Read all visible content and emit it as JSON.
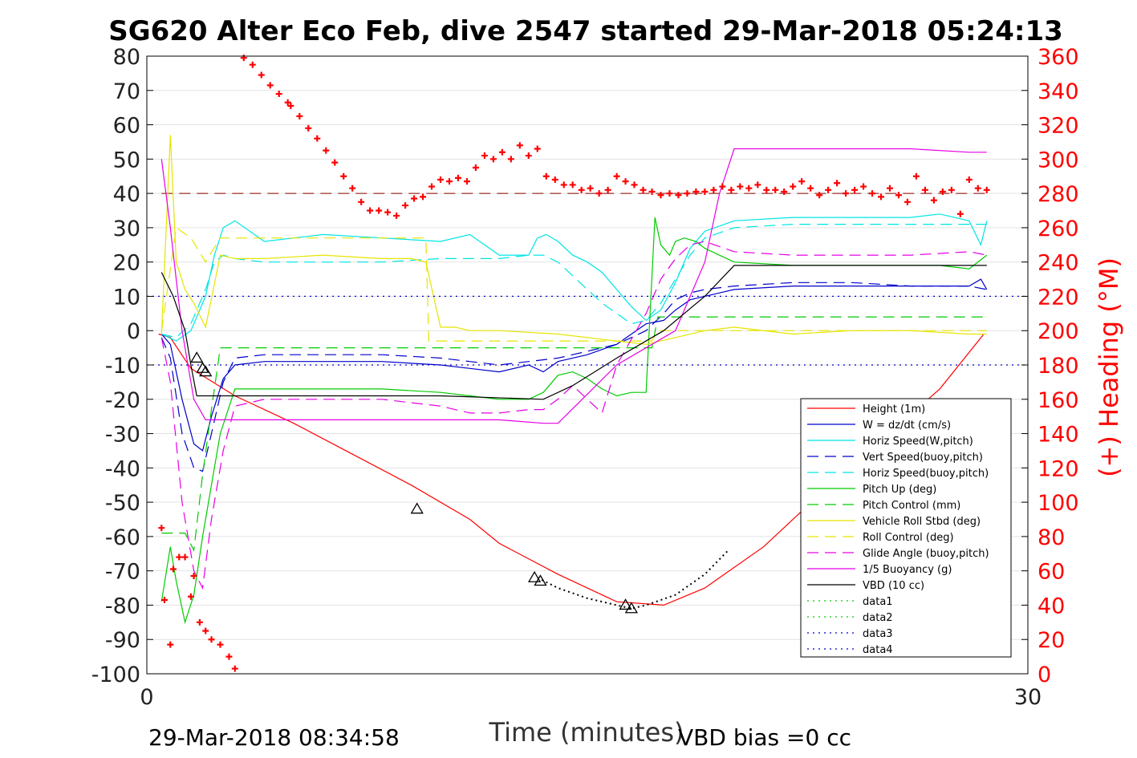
{
  "chart_data": {
    "type": "line",
    "title": "SG620 Alter Eco Feb, dive 2547 started 29-Mar-2018 05:24:13",
    "xlabel": "Time (minutes)",
    "ylabel_right": "(+) Heading (°M)",
    "footer_left": "29-Mar-2018 08:34:58",
    "footer_right": "VBD bias =0 cc",
    "xlim": [
      0,
      30
    ],
    "ylim": [
      -100,
      80
    ],
    "ylim_right": [
      0,
      360
    ],
    "xticks": [
      "0",
      "30"
    ],
    "yticks": [
      "80",
      "70",
      "60",
      "50",
      "40",
      "30",
      "20",
      "10",
      "0",
      "-10",
      "-20",
      "-30",
      "-40",
      "-50",
      "-60",
      "-70",
      "-80",
      "-90",
      "-100"
    ],
    "yticks_right": [
      "360",
      "340",
      "320",
      "300",
      "280",
      "260",
      "240",
      "220",
      "200",
      "180",
      "160",
      "140",
      "120",
      "100",
      "80",
      "60",
      "40",
      "20",
      "0"
    ],
    "grid": true,
    "legend_position": "lower-right",
    "colors": {
      "axis_right": "#ff0000",
      "red": "#ff0000",
      "blue": "#0000cc",
      "cyan": "#00e5e5",
      "green": "#00cc00",
      "yellow": "#e5e500",
      "magenta": "#e500e5",
      "black": "#000000",
      "darkred": "#8b0000"
    },
    "series": [
      {
        "name": "Height (1m)",
        "style": "solid",
        "color": "#ff0000",
        "x": [
          0.4,
          0.8,
          1.5,
          3,
          5,
          7,
          9,
          11,
          12,
          14,
          16,
          17.6,
          19,
          21,
          23,
          25,
          27,
          28.5
        ],
        "y": [
          -1,
          -2,
          -11,
          -19,
          -27,
          -36,
          -45,
          -55,
          -62,
          -71,
          -79,
          -80,
          -75,
          -63,
          -47,
          -32,
          -17,
          -1
        ]
      },
      {
        "name": "W = dz/dt (cm/s)",
        "style": "solid",
        "color": "#0000cc",
        "x": [
          0.5,
          0.8,
          1.2,
          1.6,
          1.9,
          2.2,
          2.6,
          3,
          4,
          6,
          8,
          10,
          11,
          12,
          13,
          13.5,
          14,
          15,
          16,
          16.5,
          17,
          17.6,
          18,
          18.5,
          19,
          20,
          22,
          24,
          26,
          28,
          28.4,
          28.6
        ],
        "y": [
          -1,
          -4,
          -20,
          -33,
          -35,
          -25,
          -14,
          -10,
          -9,
          -9,
          -9,
          -10,
          -11,
          -12,
          -10,
          -12,
          -9,
          -7,
          -4,
          -1,
          2,
          3,
          6,
          9,
          10,
          12,
          13,
          13,
          13,
          13,
          15,
          12
        ]
      },
      {
        "name": "Horiz Speed(W,pitch)",
        "style": "solid",
        "color": "#00e5e5",
        "x": [
          0.5,
          1,
          1.5,
          2,
          2.3,
          2.6,
          3,
          4,
          6,
          8,
          10,
          11,
          12,
          13,
          13.3,
          13.6,
          14,
          14.5,
          15,
          15.5,
          16,
          16.5,
          17,
          17.5,
          18,
          18.5,
          19,
          20,
          22,
          24,
          26,
          27,
          28,
          28.4,
          28.6
        ],
        "y": [
          -1,
          -3,
          0,
          10,
          22,
          30,
          32,
          26,
          28,
          27,
          26,
          28,
          22,
          22,
          27,
          28,
          26,
          22,
          20,
          17,
          12,
          7,
          3,
          6,
          14,
          24,
          29,
          32,
          33,
          33,
          33,
          34,
          32,
          25,
          32
        ]
      },
      {
        "name": "Vert Speed(buoy,pitch)",
        "style": "dashed",
        "color": "#0000cc",
        "x": [
          0.5,
          0.8,
          1.2,
          1.6,
          1.9,
          2.2,
          2.6,
          3,
          4,
          6,
          8,
          10,
          11,
          12,
          13,
          14,
          15,
          16,
          16.5,
          17,
          17.6,
          18,
          18.5,
          19,
          20,
          22,
          24,
          26,
          28,
          28.6
        ],
        "y": [
          -2,
          -8,
          -30,
          -40,
          -41,
          -30,
          -15,
          -8,
          -7,
          -7,
          -7,
          -8,
          -9,
          -10,
          -9,
          -8,
          -6,
          -4,
          -2,
          0,
          5,
          9,
          11,
          12,
          13,
          14,
          14,
          13,
          13,
          12
        ]
      },
      {
        "name": "Horiz Speed(buoy,pitch)",
        "style": "dashed",
        "color": "#00e5e5",
        "x": [
          0.5,
          1,
          1.5,
          2,
          2.3,
          2.6,
          3,
          4,
          6,
          8,
          10,
          12,
          13,
          13.5,
          14,
          14.5,
          15,
          15.5,
          16,
          16.5,
          17,
          17.5,
          18,
          18.5,
          19,
          20,
          22,
          24,
          26,
          28,
          28.6
        ],
        "y": [
          -1,
          -2,
          2,
          12,
          20,
          22,
          21,
          20,
          20,
          20,
          21,
          21,
          22,
          22,
          20,
          16,
          12,
          8,
          5,
          2,
          3,
          8,
          15,
          22,
          27,
          30,
          31,
          31,
          31,
          31,
          31
        ]
      },
      {
        "name": "Pitch Up (deg)",
        "style": "solid",
        "color": "#00cc00",
        "x": [
          0.5,
          0.8,
          1,
          1.3,
          1.6,
          1.9,
          2.2,
          2.5,
          3,
          4,
          6,
          8,
          10,
          11,
          12,
          13,
          13.5,
          14,
          14.5,
          15,
          15.5,
          16,
          16.5,
          17,
          17.3,
          17.5,
          17.8,
          18,
          18.3,
          18.7,
          19,
          20,
          22,
          24,
          26,
          27,
          28,
          28.6
        ],
        "y": [
          -79,
          -63,
          -73,
          -85,
          -77,
          -60,
          -45,
          -30,
          -17,
          -17,
          -17,
          -17,
          -18,
          -19,
          -20,
          -20,
          -18,
          -13,
          -12,
          -14,
          -17,
          -19,
          -18,
          -18,
          33,
          25,
          22,
          26,
          27,
          26,
          24,
          20,
          19,
          19,
          19,
          19,
          18,
          22
        ]
      },
      {
        "name": "Pitch Control (mm)",
        "style": "dashed",
        "color": "#00cc00",
        "x": [
          0.5,
          1.3,
          1.6,
          1.9,
          2.2,
          2.5,
          13.5,
          17.2,
          17.4,
          28.6
        ],
        "y": [
          -59,
          -59,
          -64,
          -42,
          -23,
          -5,
          -5,
          -5,
          4,
          4
        ]
      },
      {
        "name": "Vehicle Roll Stbd (deg)",
        "style": "solid",
        "color": "#e5e500",
        "x": [
          0.5,
          0.8,
          1,
          1.3,
          1.6,
          2,
          2.5,
          3,
          4,
          6,
          8,
          9,
          9.5,
          10,
          10.5,
          11,
          12,
          14,
          16,
          17,
          18,
          19,
          20,
          22,
          24,
          26,
          28,
          28.6
        ],
        "y": [
          -1,
          57,
          20,
          12,
          8,
          1,
          22,
          21,
          21,
          22,
          21,
          21,
          20,
          1,
          1,
          0,
          0,
          -1,
          -3,
          -4,
          -2,
          0,
          1,
          -1,
          0,
          0,
          -1,
          -1
        ]
      },
      {
        "name": "Roll Control (deg)",
        "style": "dashed",
        "color": "#e5e500",
        "x": [
          0.5,
          1,
          1.5,
          2,
          2.5,
          9.5,
          9.6,
          17.2,
          17.4,
          28.6
        ],
        "y": [
          0,
          30,
          27,
          20,
          27,
          27,
          -3,
          -3,
          0,
          0
        ]
      },
      {
        "name": "Glide Angle (buoy,pitch)",
        "style": "dashed",
        "color": "#e500e5",
        "x": [
          0.5,
          0.8,
          1.2,
          1.6,
          1.9,
          2.2,
          2.6,
          3,
          4,
          6,
          8,
          10,
          11,
          12,
          13,
          13.5,
          14,
          14.5,
          15,
          15.5,
          16,
          17,
          17.5,
          18,
          18.5,
          19,
          20,
          22,
          24,
          26,
          28,
          28.6
        ],
        "y": [
          -2,
          -15,
          -50,
          -70,
          -75,
          -55,
          -35,
          -22,
          -20,
          -20,
          -20,
          -22,
          -24,
          -24,
          -23,
          -23,
          -20,
          -16,
          -20,
          -24,
          -10,
          5,
          15,
          21,
          25,
          26,
          23,
          22,
          22,
          22,
          23,
          22
        ]
      },
      {
        "name": "1/5 Buoyancy (g)",
        "style": "solid",
        "color": "#e500e5",
        "x": [
          0.5,
          0.8,
          1.2,
          1.6,
          2,
          2.5,
          3,
          4,
          8,
          12,
          13.5,
          14,
          16,
          18,
          19,
          19.5,
          20,
          22,
          24,
          26,
          28,
          28.6
        ],
        "y": [
          50,
          30,
          0,
          -20,
          -26,
          -26,
          -26,
          -26,
          -26,
          -26,
          -27,
          -27,
          -10,
          0,
          20,
          40,
          53,
          53,
          53,
          53,
          52,
          52
        ]
      },
      {
        "name": "VBD (10 cc)",
        "style": "solid",
        "color": "#000000",
        "x": [
          0.5,
          0.9,
          1.3,
          1.5,
          1.7,
          3,
          6,
          10,
          13.5,
          14.5,
          16,
          17.6,
          19,
          20,
          22,
          24,
          26,
          28,
          28.6
        ],
        "y": [
          17,
          10,
          0,
          -10,
          -19,
          -19,
          -19,
          -19,
          -20,
          -16,
          -8,
          0,
          10,
          19,
          19,
          19,
          19,
          19,
          19
        ]
      },
      {
        "name": "data1",
        "style": "dotted",
        "color": "#00cc00",
        "x": [],
        "y": []
      },
      {
        "name": "data2",
        "style": "dotted",
        "color": "#00cc00",
        "x": [],
        "y": []
      },
      {
        "name": "data3",
        "style": "dotted",
        "color": "#0000cc",
        "x": [
          0,
          30
        ],
        "y": [
          10,
          10
        ]
      },
      {
        "name": "data4",
        "style": "dotted",
        "color": "#0000cc",
        "x": [
          0,
          30
        ],
        "y": [
          -10,
          -10
        ]
      }
    ],
    "reference_lines": [
      {
        "axis": "right",
        "value": 280,
        "style": "dashed",
        "color": "#8b0000"
      }
    ],
    "heading_points_right_axis": {
      "x": [
        0.5,
        0.6,
        0.8,
        0.9,
        1.1,
        1.3,
        1.5,
        1.6,
        1.8,
        2.0,
        2.2,
        2.5,
        2.8,
        3,
        3.3,
        3.6,
        3.9,
        4.2,
        4.5,
        4.8,
        4.9,
        5.2,
        5.5,
        5.8,
        6.1,
        6.4,
        6.7,
        7,
        7.3,
        7.6,
        7.9,
        8.2,
        8.5,
        8.8,
        9.1,
        9.4,
        9.7,
        10,
        10.3,
        10.6,
        10.9,
        11.2,
        11.5,
        11.8,
        12.1,
        12.4,
        12.7,
        13,
        13.3,
        13.6,
        13.9,
        14.2,
        14.5,
        14.8,
        15.1,
        15.4,
        15.7,
        16,
        16.3,
        16.6,
        16.9,
        17.2,
        17.5,
        17.8,
        18.1,
        18.4,
        18.7,
        19,
        19.3,
        19.6,
        19.9,
        20.2,
        20.5,
        20.8,
        21.1,
        21.4,
        21.7,
        22,
        22.3,
        22.6,
        22.9,
        23.2,
        23.5,
        23.8,
        24.1,
        24.4,
        24.7,
        25,
        25.3,
        25.6,
        25.9,
        26.2,
        26.5,
        26.8,
        27.1,
        27.4,
        27.7,
        28,
        28.3,
        28.6
      ],
      "y": [
        85,
        43,
        17,
        61,
        68,
        68,
        45,
        57,
        30,
        25,
        20,
        17,
        10,
        3,
        359,
        355,
        349,
        343,
        338,
        333,
        331,
        325,
        318,
        312,
        305,
        298,
        290,
        283,
        275,
        270,
        270,
        269,
        267,
        273,
        277,
        278,
        284,
        288,
        287,
        289,
        287,
        295,
        302,
        300,
        304,
        300,
        308,
        302,
        306,
        290,
        288,
        285,
        285,
        282,
        283,
        280,
        282,
        290,
        287,
        285,
        282,
        281,
        279,
        280,
        279,
        280,
        281,
        281,
        282,
        284,
        282,
        284,
        283,
        285,
        282,
        282,
        281,
        284,
        287,
        283,
        279,
        282,
        286,
        280,
        282,
        284,
        280,
        278,
        283,
        279,
        275,
        290,
        282,
        276,
        281,
        282,
        268,
        288,
        283,
        282
      ]
    },
    "markers": [
      {
        "x": 1.7,
        "y": -8
      },
      {
        "x": 1.9,
        "y": -11
      },
      {
        "x": 2.0,
        "y": -12
      },
      {
        "x": 9.2,
        "y": -52
      },
      {
        "x": 13.2,
        "y": -72
      },
      {
        "x": 13.4,
        "y": -73
      },
      {
        "x": 16.3,
        "y": -80
      },
      {
        "x": 16.5,
        "y": -81
      }
    ],
    "dotted_black_segment": {
      "x": [
        13.3,
        14,
        15,
        16,
        16.5,
        17,
        18,
        19,
        19.8
      ],
      "y": [
        -72,
        -75,
        -78,
        -80,
        -81,
        -80,
        -77,
        -71,
        -64
      ]
    }
  }
}
